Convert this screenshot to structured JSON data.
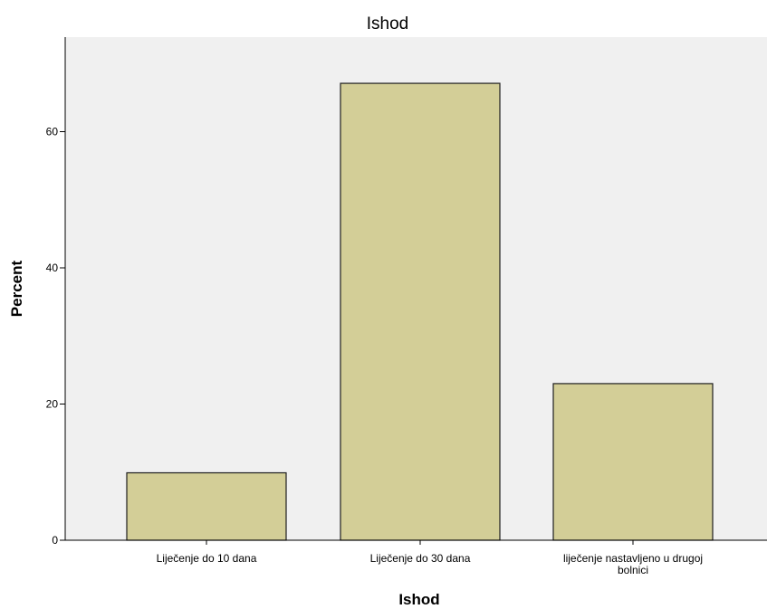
{
  "chart_data": {
    "type": "bar",
    "title": "Ishod",
    "xlabel": "Ishod",
    "ylabel": "Percent",
    "categories": [
      [
        "Liječenje do 10 dana"
      ],
      [
        "Liječenje do 30 dana"
      ],
      [
        "liječenje nastavljeno u drugoj",
        "bolnici"
      ]
    ],
    "values": [
      9.9,
      67.1,
      23.0
    ],
    "ylim": [
      0,
      75
    ],
    "yticks": [
      0,
      20,
      40,
      60
    ],
    "grid": false,
    "legend": "none",
    "colors": {
      "bar_fill": "#D3CE97",
      "bar_stroke": "#1e1e1e",
      "plot_background": "#F0F0F0",
      "axis": "#000000"
    }
  }
}
